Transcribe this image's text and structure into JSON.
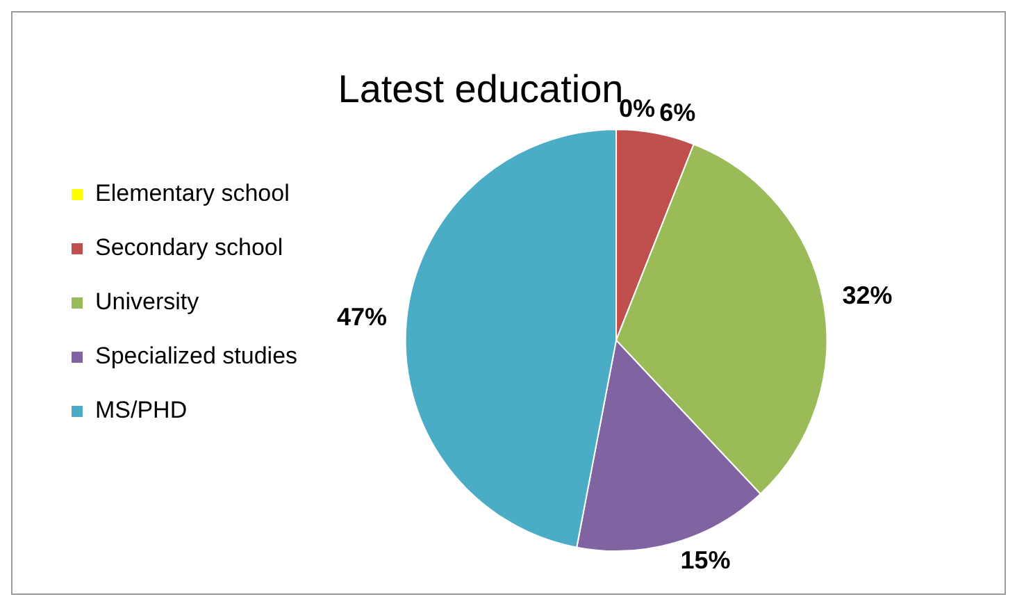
{
  "chart_data": {
    "type": "pie",
    "title": "Latest education",
    "categories": [
      "Elementary school",
      "Secondary school",
      "University",
      "Specialized studies",
      "MS/PHD"
    ],
    "values": [
      0,
      6,
      32,
      15,
      47
    ],
    "colors": [
      "#ffff00",
      "#c0504d",
      "#9bbb59",
      "#8064a2",
      "#4bacc6"
    ],
    "value_labels": [
      "0%",
      "6%",
      "32%",
      "15%",
      "47%"
    ],
    "legend": "left"
  }
}
